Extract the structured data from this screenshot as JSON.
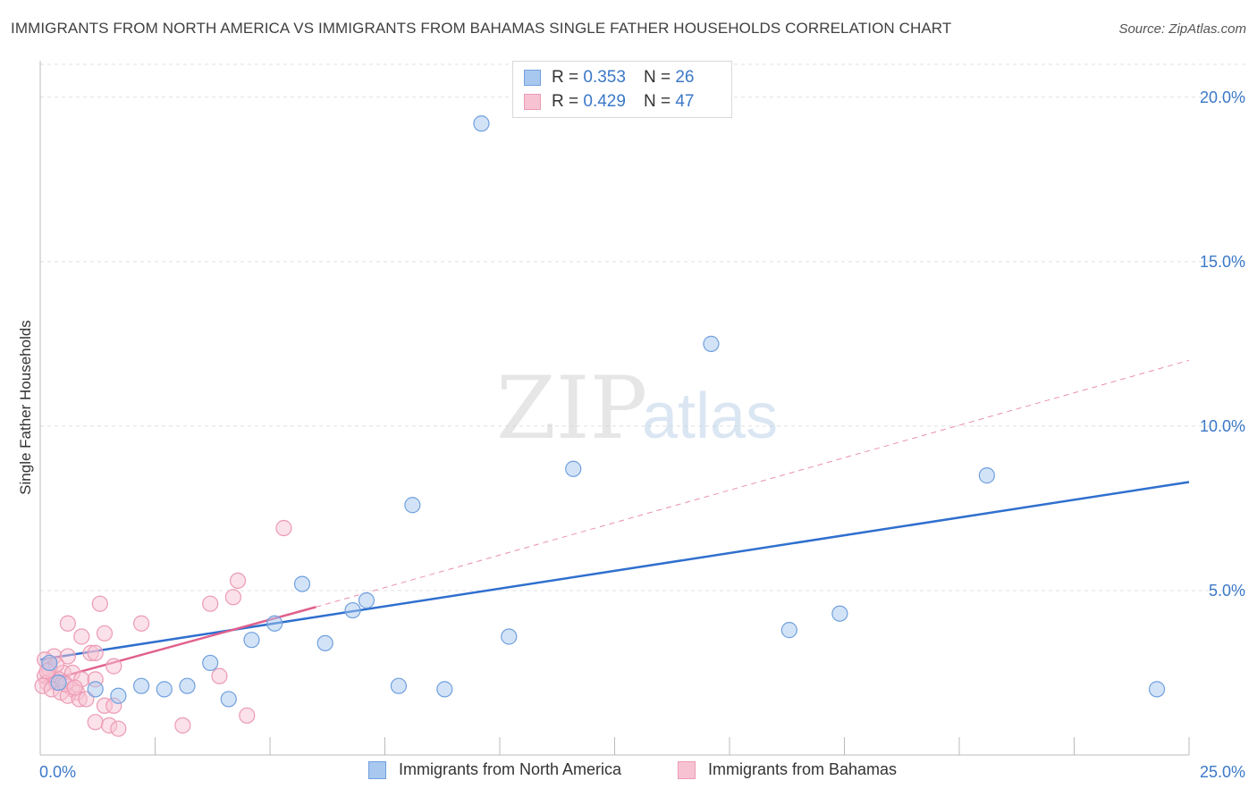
{
  "title": "IMMIGRANTS FROM NORTH AMERICA VS IMMIGRANTS FROM BAHAMAS SINGLE FATHER HOUSEHOLDS CORRELATION CHART",
  "source": "Source: ZipAtlas.com",
  "watermark": {
    "zip": "ZIP",
    "atlas": "atlas"
  },
  "legend_top": [
    {
      "r_label": "R =",
      "r_value": "0.353",
      "n_label": "N =",
      "n_value": "26",
      "color": "#a8c8f0",
      "border": "#6fa0de"
    },
    {
      "r_label": "R =",
      "r_value": "0.429",
      "n_label": "N =",
      "n_value": "47",
      "color": "#f7c3d3",
      "border": "#ec9ab3"
    }
  ],
  "chart_data": {
    "type": "scatter",
    "title": "IMMIGRANTS FROM NORTH AMERICA VS IMMIGRANTS FROM BAHAMAS SINGLE FATHER HOUSEHOLDS CORRELATION CHART",
    "xlabel": "",
    "ylabel": "Single Father Households",
    "xlim": [
      0,
      25
    ],
    "ylim": [
      0,
      21
    ],
    "x_tick_labels": [
      "0.0%",
      "25.0%"
    ],
    "y_ticks": [
      5,
      10,
      15,
      20
    ],
    "y_tick_labels": [
      "5.0%",
      "10.0%",
      "15.0%",
      "20.0%"
    ],
    "grid": true,
    "legend_position": "bottom",
    "series": [
      {
        "name": "Immigrants from North America",
        "color": "#a8c8f0",
        "edge": "#6fa0de",
        "line_color": "#2f6fce",
        "points": [
          [
            9.6,
            19.2
          ],
          [
            14.6,
            12.5
          ],
          [
            11.6,
            8.7
          ],
          [
            20.6,
            8.5
          ],
          [
            8.1,
            7.6
          ],
          [
            5.7,
            5.2
          ],
          [
            7.1,
            4.7
          ],
          [
            6.8,
            4.4
          ],
          [
            5.1,
            4.0
          ],
          [
            17.4,
            4.3
          ],
          [
            16.3,
            3.8
          ],
          [
            10.2,
            3.6
          ],
          [
            4.6,
            3.5
          ],
          [
            6.2,
            3.4
          ],
          [
            3.7,
            2.8
          ],
          [
            0.2,
            2.8
          ],
          [
            2.2,
            2.1
          ],
          [
            3.2,
            2.1
          ],
          [
            7.8,
            2.1
          ],
          [
            1.2,
            2.0
          ],
          [
            2.7,
            2.0
          ],
          [
            8.8,
            2.0
          ],
          [
            24.3,
            2.0
          ],
          [
            1.7,
            1.8
          ],
          [
            4.1,
            1.7
          ],
          [
            0.4,
            2.2
          ]
        ],
        "trend": {
          "x": [
            0,
            25
          ],
          "y": [
            2.9,
            8.3
          ]
        }
      },
      {
        "name": "Immigrants from Bahamas",
        "color": "#f7c3d3",
        "edge": "#ec9ab3",
        "line_color": "#e0608d",
        "points": [
          [
            5.3,
            6.9
          ],
          [
            4.3,
            5.3
          ],
          [
            4.2,
            4.8
          ],
          [
            1.3,
            4.6
          ],
          [
            3.7,
            4.6
          ],
          [
            0.6,
            4.0
          ],
          [
            2.2,
            4.0
          ],
          [
            1.4,
            3.7
          ],
          [
            0.9,
            3.6
          ],
          [
            1.1,
            3.1
          ],
          [
            1.2,
            3.1
          ],
          [
            0.3,
            3.0
          ],
          [
            0.1,
            2.9
          ],
          [
            0.6,
            3.0
          ],
          [
            0.2,
            2.7
          ],
          [
            1.6,
            2.7
          ],
          [
            0.5,
            2.5
          ],
          [
            0.1,
            2.4
          ],
          [
            0.7,
            2.5
          ],
          [
            0.3,
            2.3
          ],
          [
            0.4,
            2.3
          ],
          [
            0.9,
            2.3
          ],
          [
            1.2,
            2.3
          ],
          [
            3.9,
            2.4
          ],
          [
            0.15,
            2.2
          ],
          [
            0.35,
            2.2
          ],
          [
            0.5,
            2.2
          ],
          [
            0.05,
            2.1
          ],
          [
            0.25,
            2.0
          ],
          [
            0.7,
            2.0
          ],
          [
            0.8,
            1.9
          ],
          [
            0.45,
            1.9
          ],
          [
            0.6,
            1.8
          ],
          [
            0.85,
            1.7
          ],
          [
            1.0,
            1.7
          ],
          [
            1.4,
            1.5
          ],
          [
            1.6,
            1.5
          ],
          [
            1.2,
            1.0
          ],
          [
            1.5,
            0.9
          ],
          [
            1.7,
            0.8
          ],
          [
            3.1,
            0.9
          ],
          [
            4.5,
            1.2
          ],
          [
            0.2,
            2.6
          ],
          [
            0.35,
            2.75
          ],
          [
            0.55,
            2.15
          ],
          [
            0.15,
            2.55
          ],
          [
            0.75,
            2.05
          ]
        ],
        "trend": {
          "x": [
            0,
            6.0
          ],
          "y": [
            2.2,
            4.5
          ]
        },
        "trend_extended": {
          "x": [
            6.0,
            25
          ],
          "y": [
            4.5,
            12.0
          ]
        }
      }
    ]
  }
}
